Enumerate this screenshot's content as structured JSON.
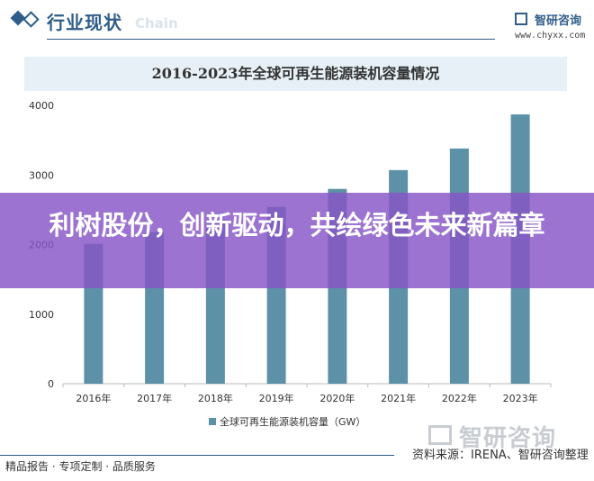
{
  "header": {
    "section_title": "行业现状",
    "section_subtitle": "Chain",
    "brand_name": "智研咨询",
    "brand_url": "www.chyxx.com"
  },
  "chart_data": {
    "type": "bar",
    "title": "2016-2023年全球可再生能源装机容量情况",
    "categories": [
      "2016年",
      "2017年",
      "2018年",
      "2019年",
      "2020年",
      "2021年",
      "2022年",
      "2023年"
    ],
    "series": [
      {
        "name": "全球可再生能源装机容量（GW）",
        "values": [
          2010,
          2180,
          2360,
          2540,
          2800,
          3070,
          3380,
          3870
        ]
      }
    ],
    "ylim": [
      0,
      4000
    ],
    "yticks": [
      "0",
      "1000",
      "2000",
      "3000",
      "4000"
    ],
    "xlabel": "",
    "ylabel": "",
    "grid": false,
    "legend_position": "bottom",
    "bar_color": "#5d91a8"
  },
  "overlay": {
    "headline": "利树股份，创新驱动，共绘绿色未来新篇章"
  },
  "watermark": "智研咨询",
  "source": "资料来源：IRENA、智研咨询整理",
  "footer": "精品报告 · 专项定制 · 品质服务"
}
